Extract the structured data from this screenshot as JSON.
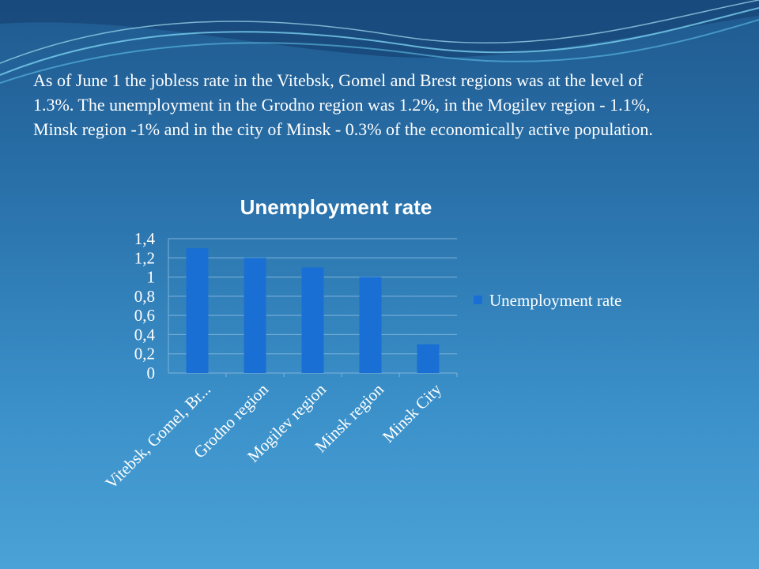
{
  "slide": {
    "text": "As of June 1 the jobless rate in the Vitebsk, Gomel and Brest regions was at the level of 1.3%. The unemployment in the Grodno region was 1.2%, in the Mogilev region - 1.1%, Minsk region -1% and in the city of Minsk - 0.3% of the economically active population."
  },
  "chart_data": {
    "type": "bar",
    "title": "Unemployment rate",
    "categories": [
      "Vitebsk, Gomel, Br...",
      "Grodno region",
      "Mogilev region",
      "Minsk region",
      "Minsk City"
    ],
    "series": [
      {
        "name": "Unemployment rate",
        "values": [
          1.3,
          1.2,
          1.1,
          1.0,
          0.3
        ],
        "color": "#1a6fd4"
      }
    ],
    "yticks": [
      "0",
      "0,2",
      "0,4",
      "0,6",
      "0,8",
      "1",
      "1,2",
      "1,4"
    ],
    "ylim": [
      0,
      1.4
    ],
    "grid": true,
    "legend_position": "right"
  },
  "colors": {
    "bar": "#1a6fd4",
    "gridline": "#7fb3d9",
    "text": "#ffffff"
  }
}
